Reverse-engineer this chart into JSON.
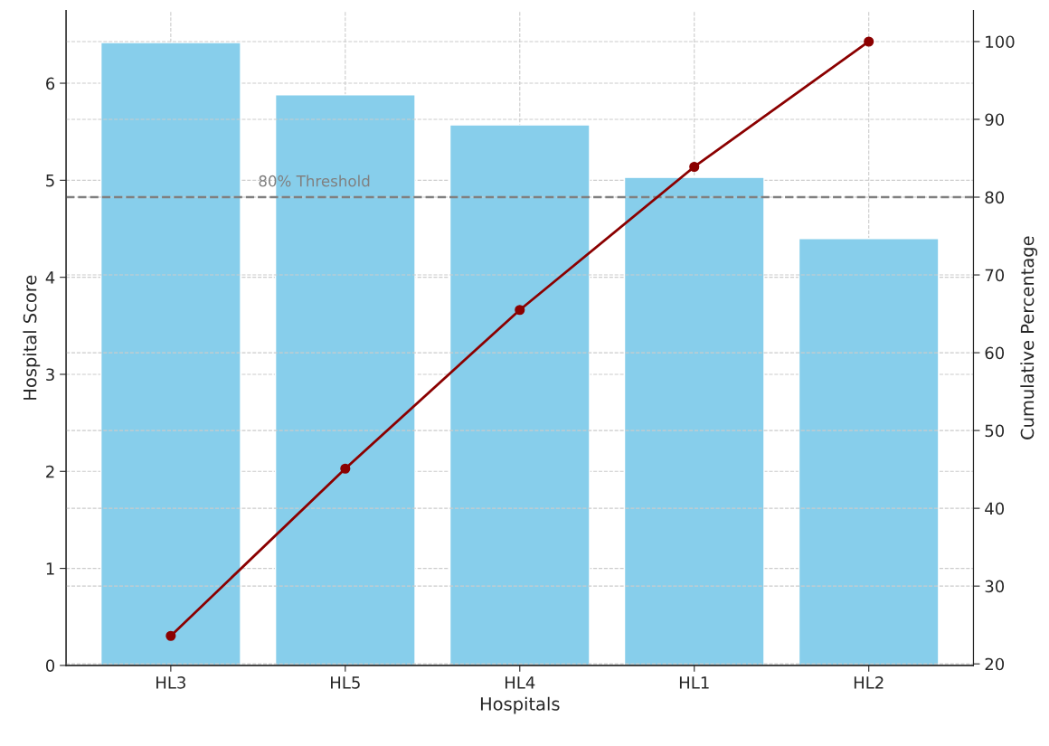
{
  "chart_data": {
    "type": "bar",
    "xlabel": "Hospitals",
    "ylabel": "Hospital Score",
    "y2label": "Cumulative Percentage",
    "categories": [
      "HL3",
      "HL5",
      "HL4",
      "HL1",
      "HL2"
    ],
    "series": [
      {
        "color": "#87ceeb",
        "values": [
          6.42,
          5.88,
          5.57,
          5.03,
          4.4
        ]
      },
      {
        "type": "line",
        "axis": "y2",
        "color": "#8b0000",
        "values": [
          23.6,
          45.1,
          65.5,
          83.9,
          100
        ],
        "marker": "circle",
        "line_style": "solid"
      }
    ],
    "ylim": [
      0,
      6.75
    ],
    "yticks": [
      0,
      1,
      2,
      3,
      4,
      5,
      6
    ],
    "y2lim": [
      19.8,
      104
    ],
    "y2ticks": [
      20,
      30,
      40,
      50,
      60,
      70,
      80,
      90,
      100
    ],
    "ref_lines": [
      {
        "axis": "y2",
        "value": 80,
        "label": "80% Threshold",
        "color": "#808080",
        "line_style": "dashed"
      }
    ],
    "grid": true
  }
}
